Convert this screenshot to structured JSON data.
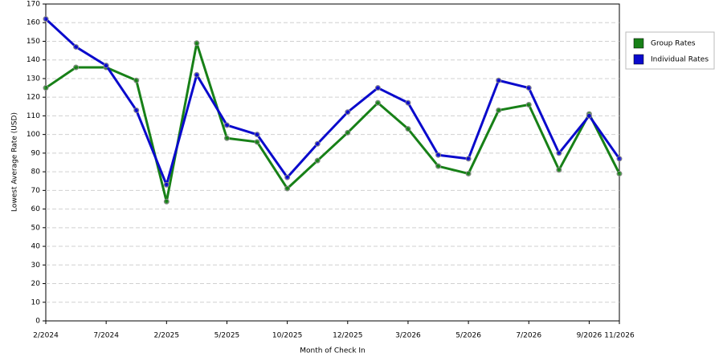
{
  "chart_data": {
    "type": "line",
    "x_label": "Month of Check In",
    "y_label": "Lowest Average Rate (USD)",
    "categories": [
      "2/2024",
      null,
      "7/2024",
      null,
      "2/2025",
      null,
      "5/2025",
      null,
      "10/2025",
      null,
      "12/2025",
      null,
      "3/2026",
      null,
      "5/2026",
      null,
      "7/2026",
      null,
      "9/2026",
      "11/2026"
    ],
    "series": [
      {
        "name": "Group Rates",
        "color": "#178017",
        "values": [
          125,
          136,
          136,
          129,
          64,
          149,
          98,
          96,
          71,
          86,
          101,
          117,
          103,
          83,
          79,
          113,
          116,
          81,
          111,
          79
        ]
      },
      {
        "name": "Individual Rates",
        "color": "#0a0acc",
        "values": [
          162,
          147,
          137,
          113,
          73,
          132,
          105,
          100,
          77,
          95,
          112,
          125,
          117,
          89,
          87,
          129,
          125,
          90,
          110,
          87
        ]
      }
    ],
    "ylim": [
      0,
      170
    ],
    "yticks": [
      0,
      10,
      20,
      30,
      40,
      50,
      60,
      70,
      80,
      90,
      100,
      110,
      120,
      130,
      140,
      150,
      160,
      170
    ],
    "grid": true,
    "legend": "right"
  }
}
